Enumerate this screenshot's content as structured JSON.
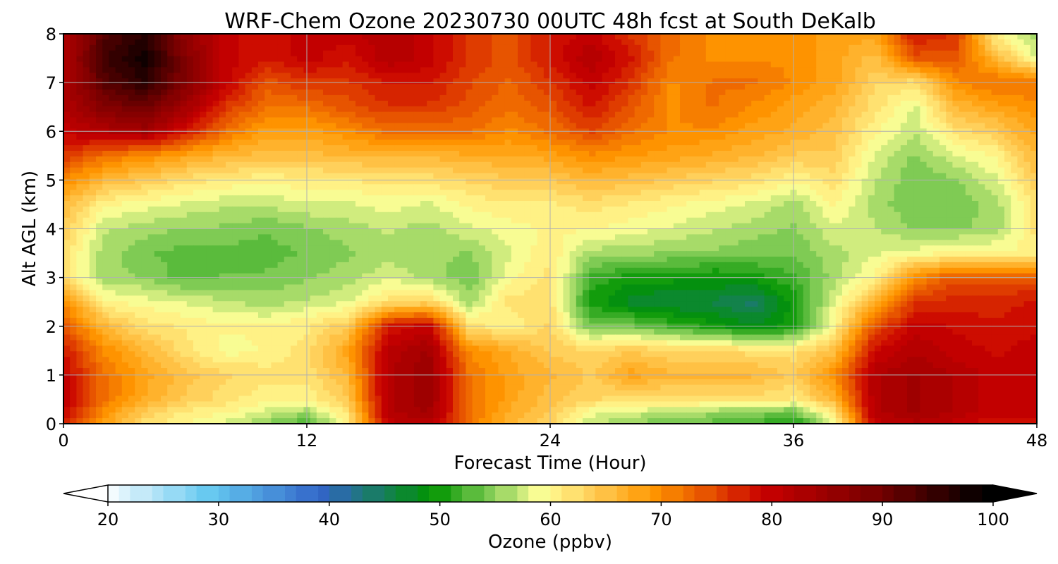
{
  "chart_data": {
    "type": "heatmap",
    "title": "WRF-Chem Ozone  20230730 00UTC 48h fcst at South DeKalb",
    "xlabel": "Forecast Time (Hour)",
    "ylabel": "Alt AGL (km)",
    "xlim": [
      0,
      48
    ],
    "ylim": [
      0,
      8
    ],
    "xticks": [
      0,
      12,
      24,
      36,
      48
    ],
    "yticks": [
      0,
      1,
      2,
      3,
      4,
      5,
      6,
      7,
      8
    ],
    "grid": true,
    "x": [
      0,
      2,
      4,
      6,
      8,
      10,
      12,
      14,
      16,
      18,
      20,
      22,
      24,
      26,
      28,
      30,
      32,
      34,
      36,
      38,
      40,
      42,
      44,
      46,
      48
    ],
    "y": [
      0,
      0.25,
      0.5,
      1,
      1.5,
      2,
      2.5,
      3,
      3.5,
      4,
      4.5,
      5,
      5.5,
      6,
      6.5,
      7,
      7.5,
      8
    ],
    "z": [
      [
        78,
        68,
        62,
        60,
        58,
        55,
        52,
        60,
        80,
        82,
        72,
        66,
        63,
        57,
        55,
        54,
        53,
        52,
        50,
        58,
        80,
        82,
        80,
        78,
        79
      ],
      [
        80,
        70,
        64,
        61,
        60,
        58,
        56,
        62,
        82,
        84,
        72,
        67,
        64,
        59,
        58,
        57,
        56,
        55,
        54,
        62,
        82,
        84,
        82,
        80,
        80
      ],
      [
        80,
        72,
        67,
        64,
        62,
        60,
        60,
        64,
        82,
        85,
        72,
        68,
        65,
        63,
        62,
        62,
        62,
        62,
        61,
        66,
        82,
        84,
        82,
        80,
        80
      ],
      [
        80,
        72,
        68,
        65,
        63,
        62,
        62,
        66,
        82,
        85,
        72,
        68,
        66,
        64,
        68,
        66,
        66,
        66,
        64,
        70,
        82,
        84,
        82,
        80,
        80
      ],
      [
        78,
        70,
        66,
        62,
        59,
        60,
        62,
        68,
        81,
        84,
        70,
        67,
        64,
        63,
        64,
        63,
        63,
        62,
        62,
        65,
        79,
        82,
        80,
        79,
        80
      ],
      [
        74,
        66,
        62,
        61,
        60,
        60,
        61,
        64,
        78,
        80,
        62,
        60,
        63,
        54,
        54,
        52,
        50,
        48,
        50,
        60,
        74,
        80,
        79,
        78,
        79
      ],
      [
        70,
        60,
        59,
        58,
        57,
        56,
        57,
        58,
        62,
        63,
        56,
        62,
        62,
        50,
        47,
        46,
        46,
        44,
        50,
        58,
        66,
        76,
        77,
        77,
        78
      ],
      [
        62,
        56,
        55,
        53,
        54,
        54,
        55,
        56,
        58,
        56,
        54,
        59,
        62,
        52,
        50,
        50,
        49,
        50,
        52,
        56,
        60,
        70,
        74,
        74,
        74
      ],
      [
        62,
        56,
        54,
        53,
        53,
        53,
        54,
        55,
        56,
        56,
        55,
        58,
        61,
        56,
        56,
        55,
        55,
        54,
        54,
        56,
        58,
        59,
        60,
        60,
        60
      ],
      [
        64,
        57,
        56,
        55,
        55,
        54,
        55,
        56,
        57,
        56,
        58,
        59,
        60,
        60,
        59,
        58,
        57,
        56,
        55,
        58,
        57,
        55,
        55,
        56,
        62
      ],
      [
        66,
        60,
        59,
        58,
        57,
        57,
        58,
        58,
        59,
        58,
        60,
        61,
        61,
        62,
        61,
        60,
        59,
        58,
        56,
        60,
        56,
        54,
        54,
        56,
        62
      ],
      [
        70,
        66,
        64,
        62,
        61,
        60,
        61,
        61,
        62,
        62,
        63,
        64,
        64,
        66,
        65,
        64,
        63,
        62,
        60,
        62,
        57,
        54,
        55,
        58,
        64
      ],
      [
        76,
        72,
        70,
        68,
        66,
        65,
        65,
        66,
        66,
        66,
        67,
        67,
        68,
        70,
        69,
        68,
        67,
        66,
        64,
        64,
        58,
        55,
        58,
        60,
        66
      ],
      [
        80,
        82,
        84,
        78,
        72,
        68,
        68,
        70,
        72,
        72,
        72,
        70,
        72,
        75,
        72,
        70,
        70,
        68,
        67,
        65,
        60,
        57,
        62,
        64,
        68
      ],
      [
        82,
        88,
        90,
        84,
        76,
        72,
        72,
        74,
        76,
        76,
        74,
        72,
        74,
        78,
        74,
        70,
        72,
        70,
        68,
        66,
        62,
        58,
        66,
        68,
        70
      ],
      [
        82,
        92,
        96,
        88,
        80,
        74,
        76,
        76,
        78,
        78,
        75,
        73,
        76,
        80,
        76,
        70,
        72,
        72,
        70,
        68,
        63,
        62,
        70,
        72,
        72
      ],
      [
        82,
        94,
        98,
        88,
        80,
        78,
        80,
        78,
        82,
        80,
        76,
        74,
        78,
        82,
        78,
        72,
        70,
        70,
        70,
        68,
        65,
        74,
        74,
        66,
        58
      ],
      [
        82,
        92,
        96,
        86,
        80,
        78,
        80,
        80,
        82,
        80,
        76,
        74,
        78,
        80,
        76,
        72,
        70,
        70,
        70,
        68,
        68,
        78,
        76,
        60,
        56
      ]
    ],
    "colorbar": {
      "label": "Ozone  (ppbv)",
      "min": 20,
      "max": 100,
      "ticks": [
        20,
        30,
        40,
        50,
        60,
        70,
        80,
        90,
        100
      ],
      "extend": "both",
      "colormap_anchors": [
        {
          "v": 20,
          "c": "#ffffff"
        },
        {
          "v": 30,
          "c": "#64c8f0"
        },
        {
          "v": 40,
          "c": "#3264c8"
        },
        {
          "v": 50,
          "c": "#009400"
        },
        {
          "v": 55,
          "c": "#78c850"
        },
        {
          "v": 60,
          "c": "#ffff96"
        },
        {
          "v": 65,
          "c": "#ffc850"
        },
        {
          "v": 70,
          "c": "#ff9600"
        },
        {
          "v": 75,
          "c": "#e65000"
        },
        {
          "v": 80,
          "c": "#c80000"
        },
        {
          "v": 90,
          "c": "#780000"
        },
        {
          "v": 100,
          "c": "#000000"
        }
      ]
    }
  },
  "colors": {
    "grid": "#b0b0b0",
    "frame": "#000000"
  }
}
